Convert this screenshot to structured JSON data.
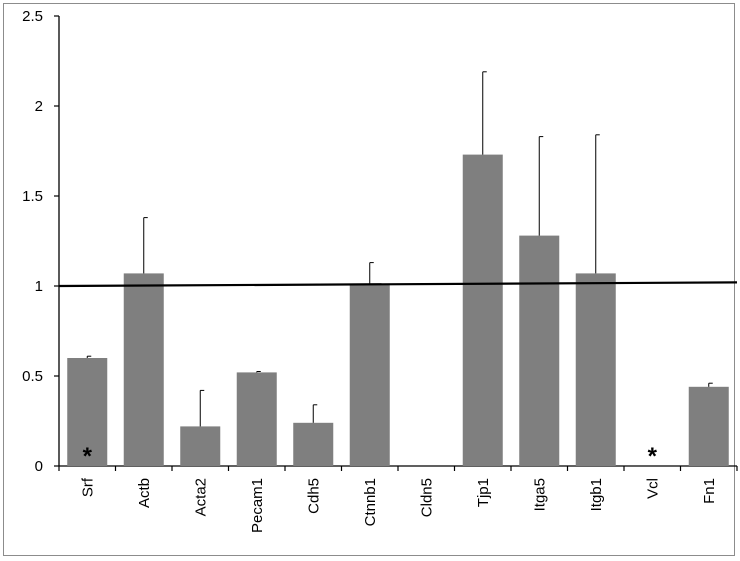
{
  "chart_data": {
    "type": "bar",
    "title": "",
    "xlabel": "",
    "ylabel": "",
    "ylim": [
      0,
      2.5
    ],
    "yticks": [
      "0",
      "0.5",
      "1",
      "1.5",
      "2",
      "2.5"
    ],
    "categories": [
      "Srf",
      "Actb",
      "Acta2",
      "Pecam1",
      "Cdh5",
      "Ctnnb1",
      "Cldn5",
      "Tjp1",
      "Itga5",
      "Itgb1",
      "Vcl",
      "Fn1"
    ],
    "values": [
      0.6,
      1.07,
      0.22,
      0.52,
      0.24,
      1.01,
      null,
      1.73,
      1.28,
      1.07,
      null,
      0.44
    ],
    "error_upper": [
      0.01,
      0.31,
      0.2,
      0.005,
      0.1,
      0.12,
      null,
      0.46,
      0.55,
      0.77,
      null,
      0.02
    ],
    "annotations": [
      "*",
      "",
      "",
      "",
      "",
      "",
      "",
      "",
      "",
      "",
      "*",
      ""
    ],
    "reference_line": {
      "y_start": 1.0,
      "y_end": 1.02
    },
    "bar_color": "#7f7f7f",
    "grid": false,
    "legend": "none"
  }
}
